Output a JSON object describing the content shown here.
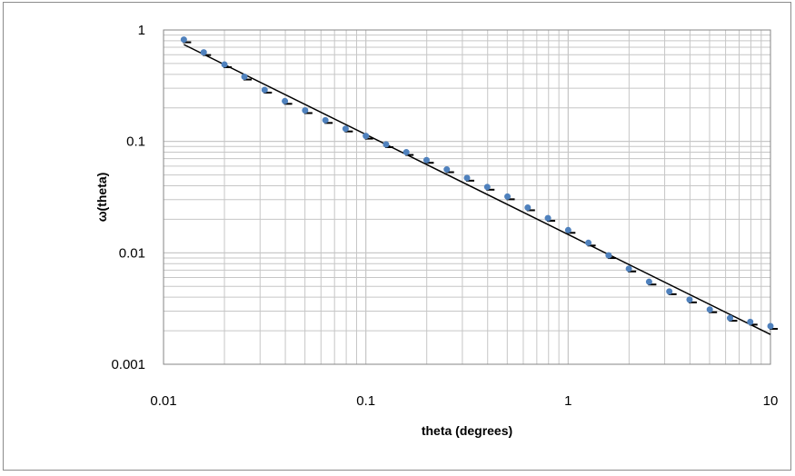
{
  "chart_data": {
    "type": "scatter",
    "xlabel": "theta (degrees)",
    "ylabel": "ω(theta)",
    "xscale": "log",
    "yscale": "log",
    "xlim": [
      0.01,
      10
    ],
    "ylim": [
      0.001,
      1
    ],
    "grid": true,
    "legend": "none",
    "x_ticks": [
      "0.01",
      "0.1",
      "1",
      "10"
    ],
    "y_ticks": [
      "0.001",
      "0.01",
      "0.1",
      "1"
    ],
    "series": [
      {
        "type": "scatter",
        "color": "#4f81bd",
        "error_color": "#000000",
        "points": [
          {
            "x": 0.0126,
            "y": 0.82
          },
          {
            "x": 0.0158,
            "y": 0.63
          },
          {
            "x": 0.02,
            "y": 0.49
          },
          {
            "x": 0.0251,
            "y": 0.38
          },
          {
            "x": 0.0316,
            "y": 0.29
          },
          {
            "x": 0.0398,
            "y": 0.23
          },
          {
            "x": 0.0501,
            "y": 0.19
          },
          {
            "x": 0.0631,
            "y": 0.155
          },
          {
            "x": 0.0794,
            "y": 0.13
          },
          {
            "x": 0.1,
            "y": 0.112
          },
          {
            "x": 0.1259,
            "y": 0.094
          },
          {
            "x": 0.1585,
            "y": 0.08
          },
          {
            "x": 0.1995,
            "y": 0.068
          },
          {
            "x": 0.2512,
            "y": 0.056
          },
          {
            "x": 0.3162,
            "y": 0.047
          },
          {
            "x": 0.3981,
            "y": 0.039
          },
          {
            "x": 0.5012,
            "y": 0.032
          },
          {
            "x": 0.631,
            "y": 0.0255
          },
          {
            "x": 0.7943,
            "y": 0.0205
          },
          {
            "x": 1.0,
            "y": 0.016
          },
          {
            "x": 1.2589,
            "y": 0.0123
          },
          {
            "x": 1.5849,
            "y": 0.0095
          },
          {
            "x": 1.9953,
            "y": 0.0072
          },
          {
            "x": 2.5119,
            "y": 0.0055
          },
          {
            "x": 3.1623,
            "y": 0.0045
          },
          {
            "x": 3.9811,
            "y": 0.0038
          },
          {
            "x": 5.0119,
            "y": 0.0031
          },
          {
            "x": 6.3096,
            "y": 0.0026
          },
          {
            "x": 7.9433,
            "y": 0.0024
          },
          {
            "x": 10.0,
            "y": 0.0022
          }
        ]
      },
      {
        "type": "line",
        "color": "#000000",
        "points": [
          {
            "x": 0.0126,
            "y": 0.74
          },
          {
            "x": 10.0,
            "y": 0.00185
          }
        ]
      }
    ]
  }
}
